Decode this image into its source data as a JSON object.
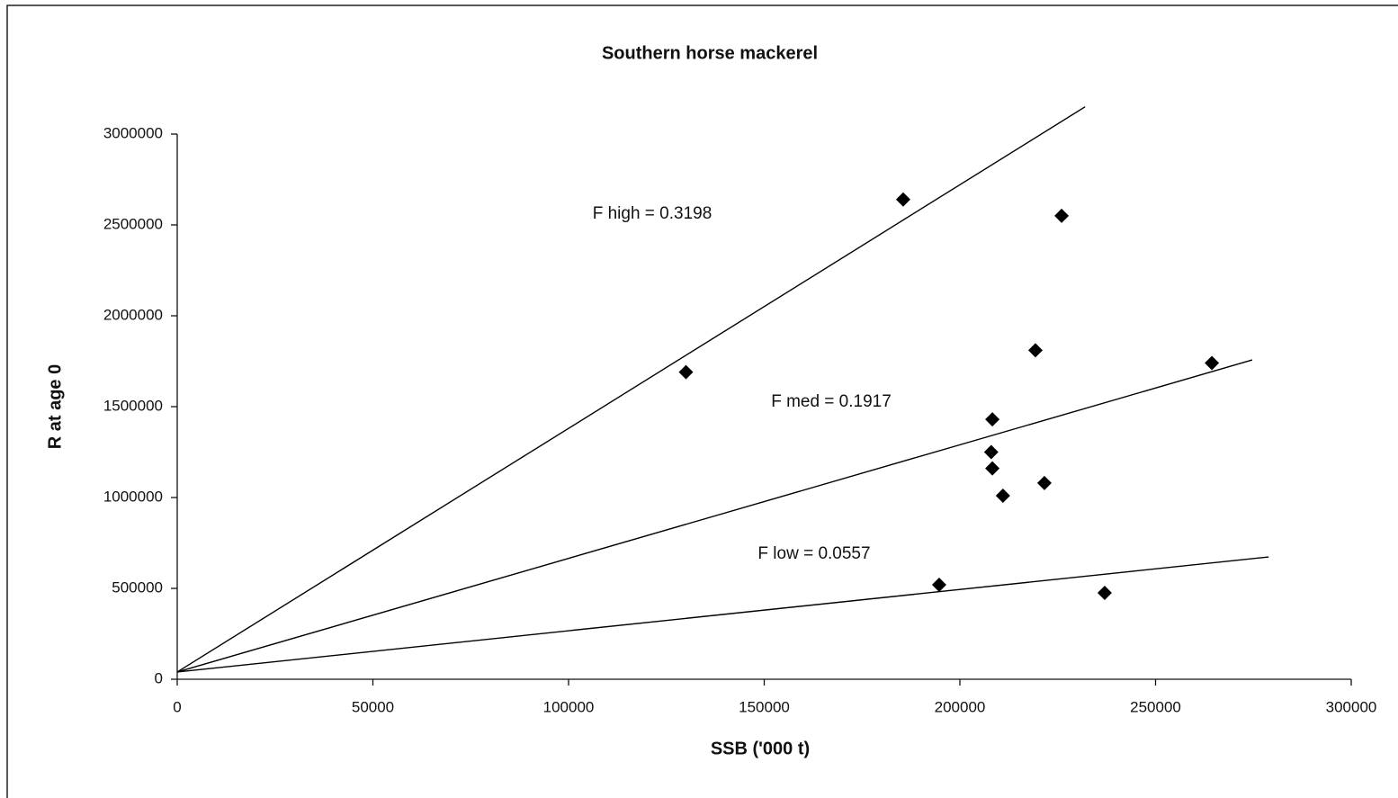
{
  "chart_data": {
    "type": "scatter",
    "title": "Southern  horse mackerel",
    "x_label": "SSB ('000 t)",
    "y_label": "R at age 0",
    "color": "#000000",
    "x": [
      130000,
      185500,
      226000,
      219300,
      264400,
      208300,
      208000,
      208300,
      211000,
      221600,
      194700,
      237000
    ],
    "values": [
      1690000,
      2640000,
      2550000,
      1810000,
      1740000,
      1430000,
      1250000,
      1160000,
      1010000,
      1080000,
      520000,
      475000
    ],
    "lines": [
      {
        "label": "F high = 0.3198",
        "x": [
          0,
          232000
        ],
        "values": [
          40000,
          3150000
        ]
      },
      {
        "label": "F med = 0.1917",
        "x": [
          0,
          274700
        ],
        "values": [
          40000,
          1757000
        ]
      },
      {
        "label": "F low = 0.0557",
        "x": [
          0,
          278900
        ],
        "values": [
          40000,
          673000
        ]
      }
    ],
    "xlim": [
      0,
      300000
    ],
    "ylim": [
      0,
      3000000
    ],
    "xticks": [
      0,
      50000,
      100000,
      150000,
      200000,
      250000,
      300000
    ],
    "yticks": [
      0,
      500000,
      1000000,
      1500000,
      2000000,
      2500000,
      3000000
    ]
  }
}
